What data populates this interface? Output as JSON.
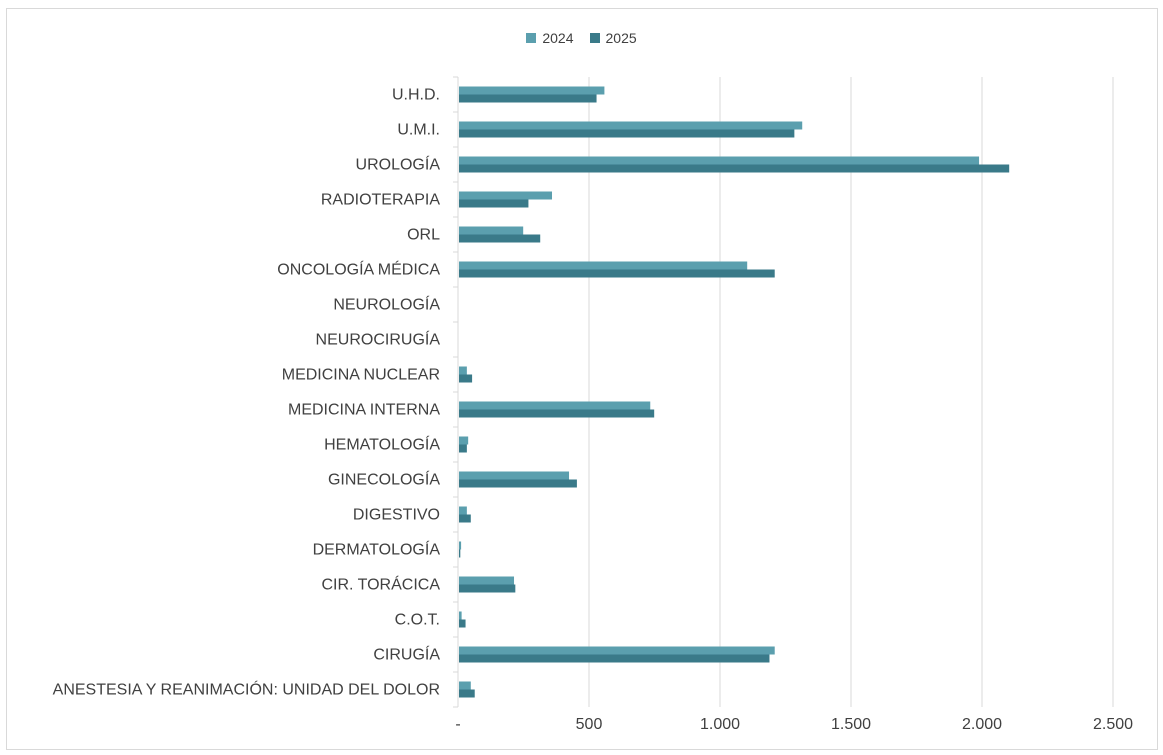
{
  "chart_data": {
    "type": "bar",
    "orientation": "horizontal",
    "title": "",
    "xlabel": "",
    "ylabel": "",
    "xlim": [
      0,
      2500
    ],
    "x_ticks": [
      0,
      500,
      1000,
      1500,
      2000,
      2500
    ],
    "x_tick_labels": [
      "-",
      "500",
      "1.000",
      "1.500",
      "2.000",
      "2.500"
    ],
    "grid": "vertical",
    "legend_position": "top",
    "categories": [
      "U.H.D.",
      "U.M.I.",
      "UROLOGÍA",
      "RADIOTERAPIA",
      "ORL",
      "ONCOLOGÍA MÉDICA",
      "NEUROLOGÍA",
      "NEUROCIRUGÍA",
      "MEDICINA NUCLEAR",
      "MEDICINA INTERNA",
      "HEMATOLOGÍA",
      "GINECOLOGÍA",
      "DIGESTIVO",
      "DERMATOLOGÍA",
      "CIR. TORÁCICA",
      "C.O.T.",
      "CIRUGÍA",
      "ANESTESIA Y REANIMACIÓN: UNIDAD DEL DOLOR"
    ],
    "series": [
      {
        "name": "2024",
        "color": "#5b9fae",
        "values": [
          555,
          1310,
          1985,
          355,
          245,
          1100,
          0,
          0,
          30,
          730,
          35,
          420,
          30,
          8,
          210,
          10,
          1205,
          45
        ]
      },
      {
        "name": "2025",
        "color": "#3a7a89",
        "values": [
          525,
          1280,
          2100,
          265,
          310,
          1205,
          0,
          0,
          50,
          745,
          30,
          450,
          45,
          5,
          215,
          25,
          1185,
          60
        ]
      }
    ]
  }
}
